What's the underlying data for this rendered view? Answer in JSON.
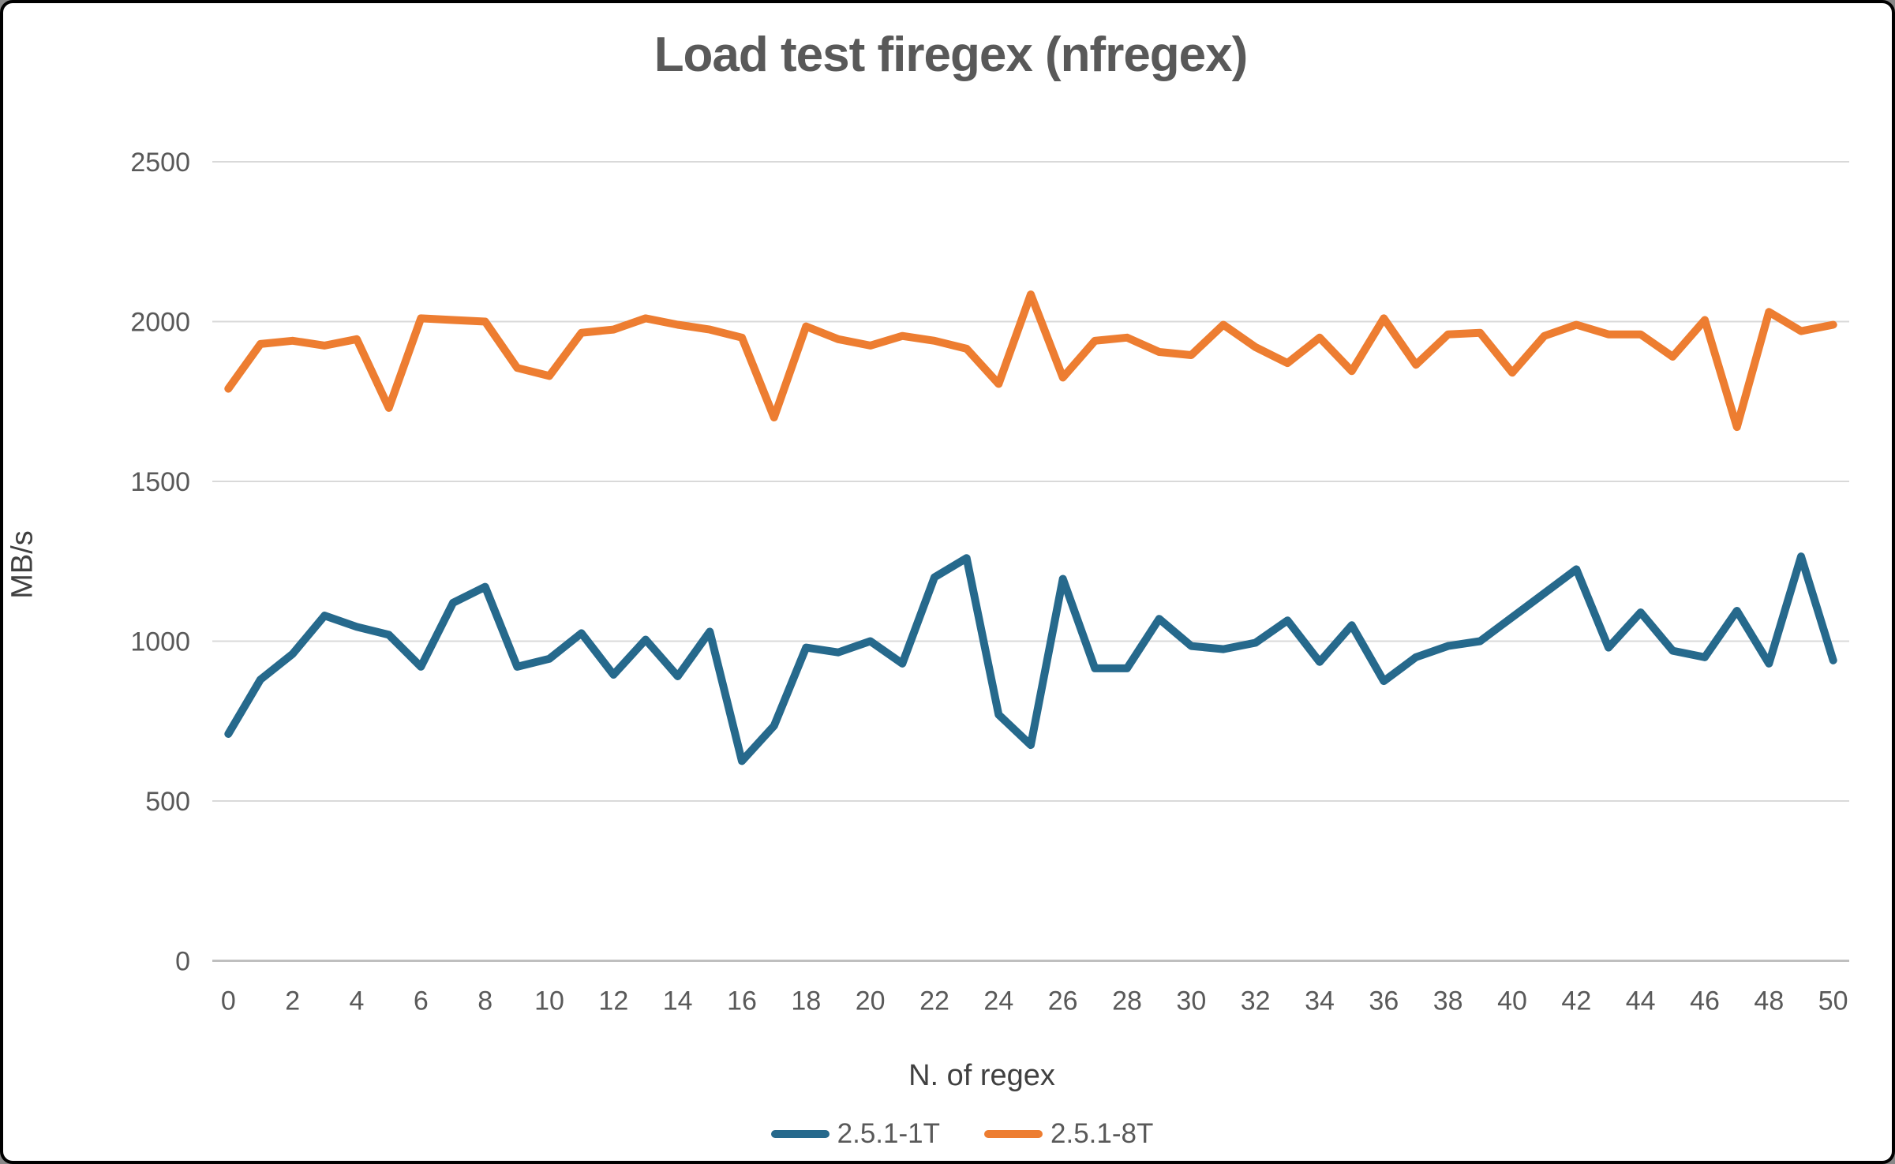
{
  "frame": {
    "background": "#FFFFFF",
    "border_color": "#000000"
  },
  "chart_data": {
    "type": "line",
    "title": "Load test firegex (nfregex)",
    "xlabel": "N. of regex",
    "ylabel": "MB/s",
    "x": [
      0,
      1,
      2,
      3,
      4,
      5,
      6,
      7,
      8,
      9,
      10,
      11,
      12,
      13,
      14,
      15,
      16,
      17,
      18,
      19,
      20,
      21,
      22,
      23,
      24,
      25,
      26,
      27,
      28,
      29,
      30,
      31,
      32,
      33,
      34,
      35,
      36,
      37,
      38,
      39,
      40,
      41,
      42,
      43,
      44,
      45,
      46,
      47,
      48,
      49,
      50
    ],
    "series": [
      {
        "name": "2.5.1-1T",
        "color": "#26698C",
        "values": [
          710,
          880,
          960,
          1080,
          1045,
          1020,
          920,
          1120,
          1170,
          920,
          945,
          1025,
          895,
          1005,
          890,
          1030,
          625,
          735,
          980,
          965,
          1000,
          930,
          1200,
          1260,
          770,
          675,
          1195,
          915,
          915,
          1070,
          985,
          975,
          995,
          1065,
          935,
          1050,
          875,
          950,
          985,
          1000,
          1075,
          1150,
          1225,
          980,
          1090,
          970,
          950,
          1095,
          930,
          1265,
          940
        ]
      },
      {
        "name": "2.5.1-8T",
        "color": "#ED7D31",
        "values": [
          1790,
          1930,
          1940,
          1925,
          1945,
          1730,
          2010,
          2005,
          2000,
          1855,
          1830,
          1965,
          1975,
          2010,
          1990,
          1975,
          1950,
          1700,
          1985,
          1945,
          1925,
          1955,
          1940,
          1915,
          1805,
          2085,
          1825,
          1940,
          1950,
          1905,
          1895,
          1990,
          1920,
          1870,
          1950,
          1845,
          2010,
          1865,
          1960,
          1965,
          1840,
          1955,
          1990,
          1960,
          1960,
          1890,
          2005,
          1670,
          2030,
          1970,
          1990
        ]
      }
    ],
    "ylim": [
      0,
      2500
    ],
    "yticks": [
      0,
      500,
      1000,
      1500,
      2000,
      2500
    ],
    "xtick_step": 2,
    "grid": "horizontal",
    "legend_position": "bottom",
    "text_color": "#595959",
    "grid_color": "#D9D9D9",
    "axis_line_color": "#BFBFBF"
  }
}
